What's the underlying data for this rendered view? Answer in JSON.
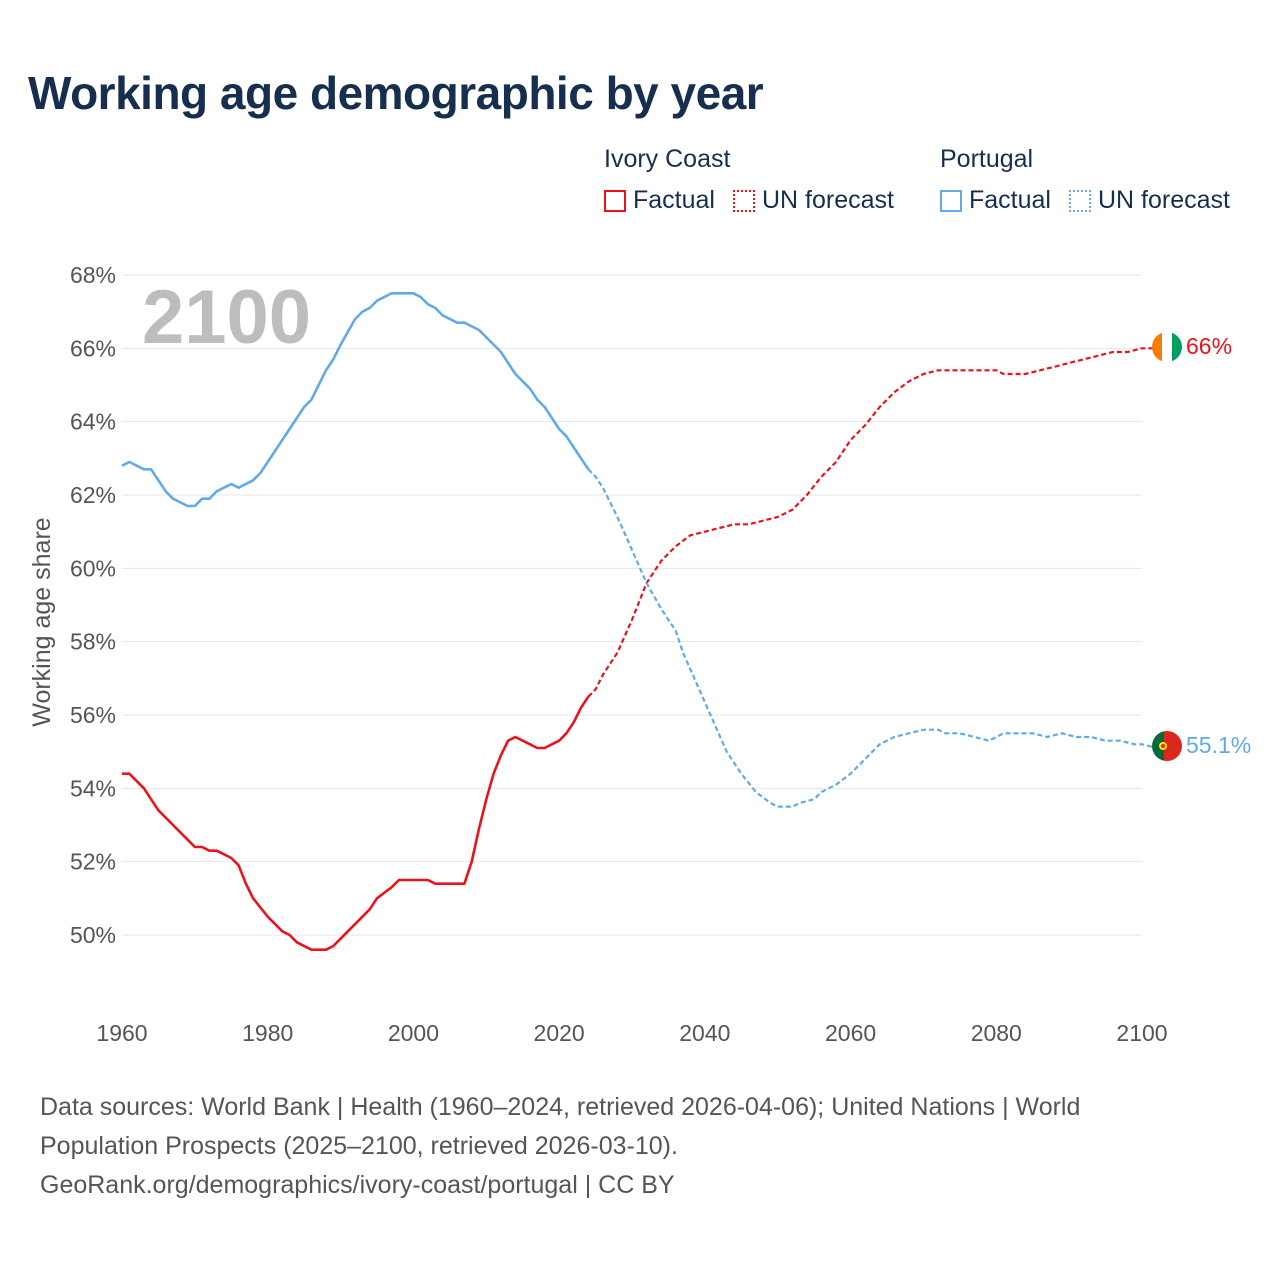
{
  "title": "Working age demographic by year",
  "colors": {
    "ivory_coast": "#e8141c",
    "portugal": "#62aae6",
    "title": "#172f4f",
    "axis_text": "#555555",
    "grid": "#e6e6e6",
    "year_overlay": "#bdbdbd"
  },
  "legend": {
    "groups": [
      {
        "name": "Ivory Coast",
        "factual_label": "Factual",
        "forecast_label": "UN forecast"
      },
      {
        "name": "Portugal",
        "factual_label": "Factual",
        "forecast_label": "UN forecast"
      }
    ]
  },
  "year_overlay": "2100",
  "chart_data": {
    "type": "line",
    "title": "Working age demographic by year",
    "xlabel": "",
    "ylabel": "Working age share",
    "xlim": [
      1960,
      2100
    ],
    "ylim": [
      48.5,
      68.5
    ],
    "x_ticks": [
      1960,
      1980,
      2000,
      2020,
      2040,
      2060,
      2080,
      2100
    ],
    "y_ticks": [
      50,
      52,
      54,
      56,
      58,
      60,
      62,
      64,
      66,
      68
    ],
    "y_tick_labels": [
      "50%",
      "52%",
      "54%",
      "56%",
      "58%",
      "60%",
      "62%",
      "64%",
      "66%",
      "68%"
    ],
    "forecast_start": 2024,
    "series": [
      {
        "name": "Ivory Coast",
        "color": "#e8141c",
        "end_label": "66%",
        "flag": "ivory-coast",
        "points": [
          [
            1960,
            54.4
          ],
          [
            1961,
            54.4
          ],
          [
            1963,
            54.0
          ],
          [
            1965,
            53.4
          ],
          [
            1967,
            53.0
          ],
          [
            1969,
            52.6
          ],
          [
            1970,
            52.4
          ],
          [
            1971,
            52.4
          ],
          [
            1972,
            52.3
          ],
          [
            1973,
            52.3
          ],
          [
            1975,
            52.1
          ],
          [
            1976,
            51.9
          ],
          [
            1977,
            51.4
          ],
          [
            1978,
            51.0
          ],
          [
            1980,
            50.5
          ],
          [
            1982,
            50.1
          ],
          [
            1983,
            50.0
          ],
          [
            1984,
            49.8
          ],
          [
            1986,
            49.6
          ],
          [
            1988,
            49.6
          ],
          [
            1989,
            49.7
          ],
          [
            1991,
            50.1
          ],
          [
            1993,
            50.5
          ],
          [
            1994,
            50.7
          ],
          [
            1995,
            51.0
          ],
          [
            1997,
            51.3
          ],
          [
            1998,
            51.5
          ],
          [
            2000,
            51.5
          ],
          [
            2002,
            51.5
          ],
          [
            2003,
            51.4
          ],
          [
            2005,
            51.4
          ],
          [
            2007,
            51.4
          ],
          [
            2008,
            52.0
          ],
          [
            2009,
            52.9
          ],
          [
            2010,
            53.7
          ],
          [
            2011,
            54.4
          ],
          [
            2012,
            54.9
          ],
          [
            2013,
            55.3
          ],
          [
            2014,
            55.4
          ],
          [
            2015,
            55.3
          ],
          [
            2016,
            55.2
          ],
          [
            2017,
            55.1
          ],
          [
            2018,
            55.1
          ],
          [
            2019,
            55.2
          ],
          [
            2020,
            55.3
          ],
          [
            2021,
            55.5
          ],
          [
            2022,
            55.8
          ],
          [
            2023,
            56.2
          ],
          [
            2024,
            56.5
          ],
          [
            2025,
            56.7
          ],
          [
            2026,
            57.1
          ],
          [
            2028,
            57.7
          ],
          [
            2030,
            58.6
          ],
          [
            2032,
            59.6
          ],
          [
            2034,
            60.2
          ],
          [
            2036,
            60.6
          ],
          [
            2038,
            60.9
          ],
          [
            2040,
            61.0
          ],
          [
            2042,
            61.1
          ],
          [
            2044,
            61.2
          ],
          [
            2046,
            61.2
          ],
          [
            2048,
            61.3
          ],
          [
            2050,
            61.4
          ],
          [
            2052,
            61.6
          ],
          [
            2054,
            62.0
          ],
          [
            2056,
            62.5
          ],
          [
            2058,
            62.9
          ],
          [
            2060,
            63.5
          ],
          [
            2062,
            63.9
          ],
          [
            2064,
            64.4
          ],
          [
            2066,
            64.8
          ],
          [
            2068,
            65.1
          ],
          [
            2070,
            65.3
          ],
          [
            2072,
            65.4
          ],
          [
            2075,
            65.4
          ],
          [
            2078,
            65.4
          ],
          [
            2080,
            65.4
          ],
          [
            2081,
            65.3
          ],
          [
            2084,
            65.3
          ],
          [
            2086,
            65.4
          ],
          [
            2088,
            65.5
          ],
          [
            2090,
            65.6
          ],
          [
            2092,
            65.7
          ],
          [
            2094,
            65.8
          ],
          [
            2096,
            65.9
          ],
          [
            2098,
            65.9
          ],
          [
            2100,
            66.0
          ],
          [
            2102,
            66.0
          ]
        ]
      },
      {
        "name": "Portugal",
        "color": "#62aae6",
        "end_label": "55.1%",
        "flag": "portugal",
        "points": [
          [
            1960,
            62.8
          ],
          [
            1961,
            62.9
          ],
          [
            1963,
            62.7
          ],
          [
            1964,
            62.7
          ],
          [
            1965,
            62.4
          ],
          [
            1966,
            62.1
          ],
          [
            1967,
            61.9
          ],
          [
            1969,
            61.7
          ],
          [
            1970,
            61.7
          ],
          [
            1971,
            61.9
          ],
          [
            1972,
            61.9
          ],
          [
            1973,
            62.1
          ],
          [
            1975,
            62.3
          ],
          [
            1976,
            62.2
          ],
          [
            1978,
            62.4
          ],
          [
            1979,
            62.6
          ],
          [
            1981,
            63.2
          ],
          [
            1983,
            63.8
          ],
          [
            1985,
            64.4
          ],
          [
            1986,
            64.6
          ],
          [
            1987,
            65.0
          ],
          [
            1988,
            65.4
          ],
          [
            1989,
            65.7
          ],
          [
            1990,
            66.1
          ],
          [
            1992,
            66.8
          ],
          [
            1993,
            67.0
          ],
          [
            1994,
            67.1
          ],
          [
            1995,
            67.3
          ],
          [
            1996,
            67.4
          ],
          [
            1997,
            67.5
          ],
          [
            1999,
            67.5
          ],
          [
            2000,
            67.5
          ],
          [
            2001,
            67.4
          ],
          [
            2002,
            67.2
          ],
          [
            2003,
            67.1
          ],
          [
            2004,
            66.9
          ],
          [
            2006,
            66.7
          ],
          [
            2007,
            66.7
          ],
          [
            2009,
            66.5
          ],
          [
            2010,
            66.3
          ],
          [
            2012,
            65.9
          ],
          [
            2014,
            65.3
          ],
          [
            2016,
            64.9
          ],
          [
            2017,
            64.6
          ],
          [
            2018,
            64.4
          ],
          [
            2019,
            64.1
          ],
          [
            2020,
            63.8
          ],
          [
            2021,
            63.6
          ],
          [
            2022,
            63.3
          ],
          [
            2023,
            63.0
          ],
          [
            2024,
            62.7
          ],
          [
            2025,
            62.5
          ],
          [
            2026,
            62.2
          ],
          [
            2028,
            61.4
          ],
          [
            2030,
            60.5
          ],
          [
            2032,
            59.6
          ],
          [
            2034,
            58.9
          ],
          [
            2036,
            58.3
          ],
          [
            2037,
            57.7
          ],
          [
            2039,
            56.8
          ],
          [
            2041,
            55.9
          ],
          [
            2043,
            55.0
          ],
          [
            2045,
            54.4
          ],
          [
            2047,
            53.9
          ],
          [
            2049,
            53.6
          ],
          [
            2050,
            53.5
          ],
          [
            2052,
            53.5
          ],
          [
            2053,
            53.6
          ],
          [
            2055,
            53.7
          ],
          [
            2056,
            53.9
          ],
          [
            2058,
            54.1
          ],
          [
            2060,
            54.4
          ],
          [
            2062,
            54.8
          ],
          [
            2064,
            55.2
          ],
          [
            2066,
            55.4
          ],
          [
            2068,
            55.5
          ],
          [
            2070,
            55.6
          ],
          [
            2072,
            55.6
          ],
          [
            2073,
            55.5
          ],
          [
            2075,
            55.5
          ],
          [
            2077,
            55.4
          ],
          [
            2079,
            55.3
          ],
          [
            2081,
            55.5
          ],
          [
            2083,
            55.5
          ],
          [
            2085,
            55.5
          ],
          [
            2087,
            55.4
          ],
          [
            2089,
            55.5
          ],
          [
            2091,
            55.4
          ],
          [
            2093,
            55.4
          ],
          [
            2095,
            55.3
          ],
          [
            2097,
            55.3
          ],
          [
            2099,
            55.2
          ],
          [
            2100,
            55.2
          ],
          [
            2102,
            55.1
          ]
        ]
      }
    ]
  },
  "footer": {
    "line1": "Data sources: World Bank | Health (1960–2024, retrieved 2026-04-06); United Nations | World",
    "line2": "Population Prospects (2025–2100, retrieved 2026-03-10).",
    "line3": "GeoRank.org/demographics/ivory-coast/portugal | CC BY"
  }
}
